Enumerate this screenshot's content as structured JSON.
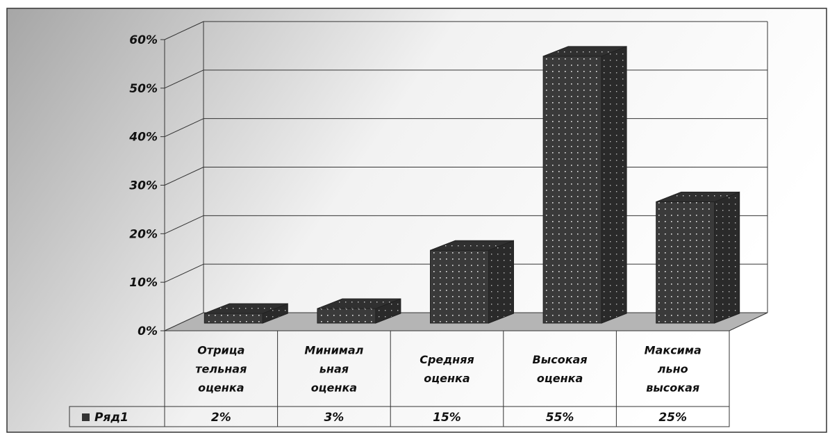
{
  "chart_data": {
    "type": "bar",
    "categories": [
      [
        "Отрица",
        "тельная",
        "оценка"
      ],
      [
        "Минимал",
        "ьная",
        "оценка"
      ],
      [
        "Средняя",
        "оценка"
      ],
      [
        "Высокая",
        "оценка"
      ],
      [
        "Максима",
        "льно",
        "высокая"
      ]
    ],
    "series": [
      {
        "name": "Ряд1",
        "values": [
          2,
          3,
          15,
          55,
          25
        ],
        "value_labels": [
          "2%",
          "3%",
          "15%",
          "55%",
          "25%"
        ]
      }
    ],
    "y_ticks": [
      "0%",
      "10%",
      "20%",
      "30%",
      "40%",
      "50%",
      "60%"
    ],
    "ylim": [
      0,
      60
    ],
    "grid": true,
    "legend": "data-table",
    "colors": {
      "bar": "#3a3a3a",
      "bar_top": "#2e2e2e",
      "bar_side": "#262626",
      "floor": "#b5b5b5",
      "grid": "#333333",
      "background_light": "#ffffff",
      "background_dark": "#aaaaaa"
    }
  }
}
